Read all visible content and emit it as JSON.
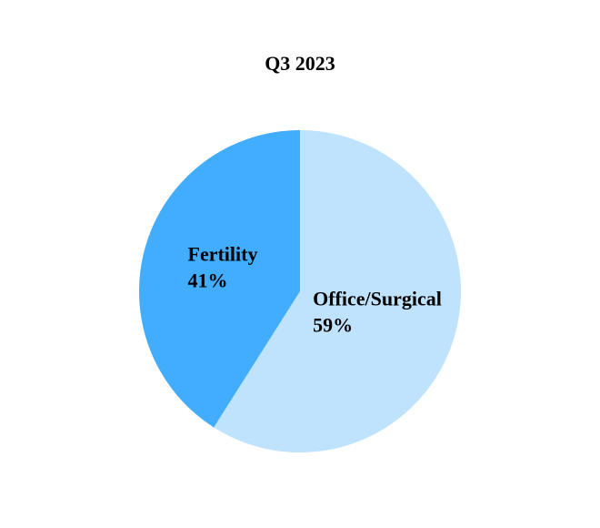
{
  "chart_data": {
    "type": "pie",
    "title": "Q3 2023",
    "categories": [
      "Office/Surgical",
      "Fertility"
    ],
    "values": [
      59,
      41
    ],
    "value_labels": [
      "59%",
      "41%"
    ],
    "colors": [
      "#bfe3fd",
      "#42adfd"
    ]
  }
}
